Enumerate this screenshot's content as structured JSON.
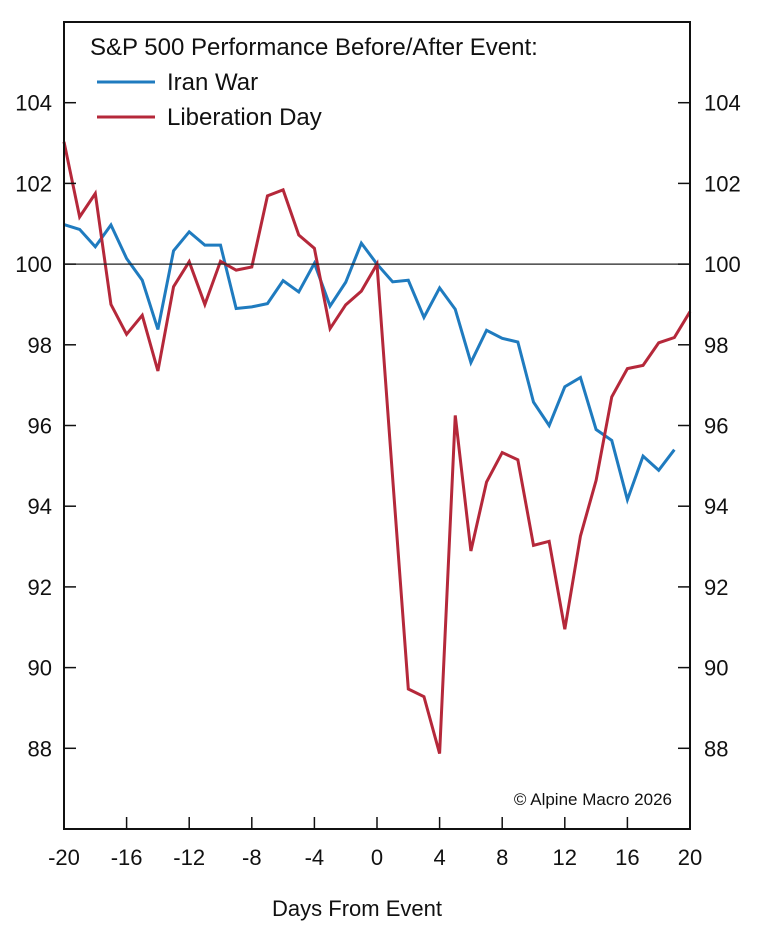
{
  "chart_data": {
    "type": "line",
    "title": "S&P 500 Performance Before/After Event:",
    "xlabel": "Days From Event",
    "ylabel": "",
    "xlim": [
      -20,
      20
    ],
    "ylim": [
      86,
      106
    ],
    "xticks": [
      -20,
      -16,
      -12,
      -8,
      -4,
      0,
      4,
      8,
      12,
      16,
      20
    ],
    "yticks": [
      88,
      90,
      92,
      94,
      96,
      98,
      100,
      102,
      104
    ],
    "xtick_labels": [
      "-20",
      "-16",
      "-12",
      "-8",
      "-4",
      "0",
      "4",
      "8",
      "12",
      "16",
      "20"
    ],
    "ytick_labels": [
      "88",
      "90",
      "92",
      "94",
      "96",
      "98",
      "100",
      "102",
      "104"
    ],
    "y_axis_both_sides": true,
    "reference_line": 100,
    "grid": false,
    "legend_position": "top-left",
    "annotation": "© Alpine Macro 2026",
    "series": [
      {
        "name": "Iran War",
        "color": "#1f7bbf",
        "x": [
          -20,
          -19,
          -18,
          -17,
          -16,
          -15,
          -14,
          -13,
          -12,
          -11,
          -10,
          -9,
          -8,
          -7,
          -6,
          -5,
          -4,
          -3,
          -2,
          -1,
          0,
          1,
          2,
          3,
          4,
          5,
          6,
          7,
          8,
          9,
          10,
          11,
          12,
          13,
          14,
          15,
          16,
          17,
          18,
          19
        ],
        "values": [
          100.98,
          100.86,
          100.43,
          100.97,
          100.14,
          99.6,
          98.38,
          100.33,
          100.8,
          100.47,
          100.47,
          98.9,
          98.94,
          99.02,
          99.59,
          99.31,
          100.02,
          98.96,
          99.55,
          100.52,
          100.0,
          99.56,
          99.6,
          98.68,
          99.41,
          98.88,
          97.56,
          98.36,
          98.16,
          98.07,
          96.58,
          96.0,
          96.96,
          97.19,
          95.9,
          95.63,
          94.16,
          95.24,
          94.89,
          95.4
        ]
      },
      {
        "name": "Liberation Day",
        "color": "#b5283a",
        "x": [
          -20,
          -19,
          -18,
          -17,
          -16,
          -15,
          -14,
          -13,
          -12,
          -11,
          -10,
          -9,
          -8,
          -7,
          -6,
          -5,
          -4,
          -3,
          -2,
          -1,
          0,
          1,
          2,
          3,
          4,
          5,
          6,
          7,
          8,
          9,
          10,
          11,
          12,
          13,
          14,
          15,
          16,
          17,
          18,
          19,
          20
        ],
        "values": [
          103.03,
          101.17,
          101.75,
          99.0,
          98.26,
          98.73,
          97.35,
          99.44,
          100.06,
          99.0,
          100.07,
          99.85,
          99.93,
          101.69,
          101.84,
          100.72,
          100.39,
          98.4,
          98.99,
          99.33,
          100.0,
          94.7,
          89.47,
          89.28,
          87.87,
          96.25,
          92.89,
          94.6,
          95.33,
          95.15,
          93.03,
          93.13,
          90.95,
          93.26,
          94.64,
          96.71,
          97.41,
          97.49,
          98.05,
          98.18,
          98.82
        ]
      }
    ]
  }
}
